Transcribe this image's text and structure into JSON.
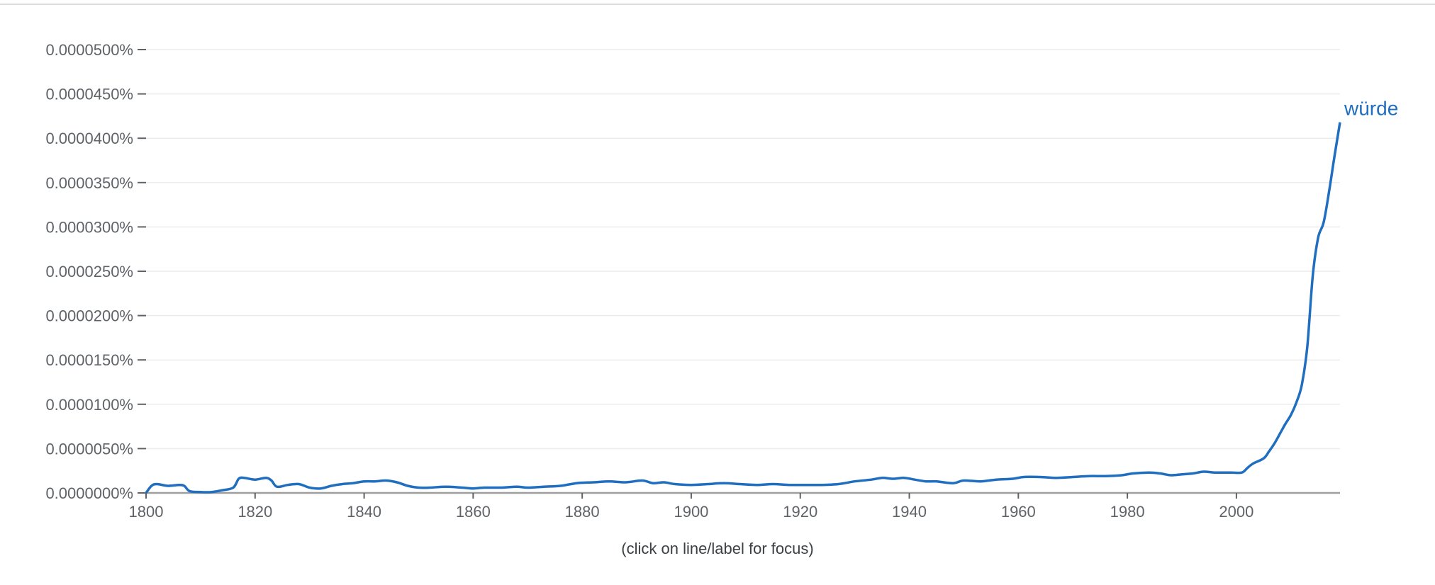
{
  "chart_data": {
    "type": "line",
    "title": "",
    "xlabel": "",
    "ylabel": "",
    "xlim": [
      1800,
      2019
    ],
    "ylim": [
      0,
      5e-05
    ],
    "x_ticks": [
      1800,
      1820,
      1840,
      1860,
      1880,
      1900,
      1920,
      1940,
      1960,
      1980,
      2000
    ],
    "x_tick_labels": [
      "1800",
      "1820",
      "1840",
      "1860",
      "1880",
      "1900",
      "1920",
      "1940",
      "1960",
      "1980",
      "2000"
    ],
    "y_ticks": [
      0,
      5e-06,
      1e-05,
      1.5e-05,
      2e-05,
      2.5e-05,
      3e-05,
      3.5e-05,
      4e-05,
      4.5e-05,
      5e-05
    ],
    "y_tick_labels": [
      "0.0000000%",
      "0.0000050%",
      "0.0000100%",
      "0.0000150%",
      "0.0000200%",
      "0.0000250%",
      "0.0000300%",
      "0.0000350%",
      "0.0000400%",
      "0.0000450%",
      "0.0000500%"
    ],
    "grid": true,
    "legend": "end-of-line label",
    "series": [
      {
        "name": "würde",
        "color": "#1f6ebf",
        "points": [
          [
            1800,
            0.0
          ],
          [
            1801,
            8e-07
          ],
          [
            1802,
            1e-06
          ],
          [
            1804,
            8e-07
          ],
          [
            1806,
            9e-07
          ],
          [
            1807,
            8e-07
          ],
          [
            1808,
            2e-07
          ],
          [
            1810,
            1e-07
          ],
          [
            1812,
            1e-07
          ],
          [
            1814,
            3e-07
          ],
          [
            1816,
            6e-07
          ],
          [
            1817,
            1.6e-06
          ],
          [
            1818,
            1.7e-06
          ],
          [
            1820,
            1.5e-06
          ],
          [
            1822,
            1.7e-06
          ],
          [
            1823,
            1.4e-06
          ],
          [
            1824,
            7e-07
          ],
          [
            1826,
            9e-07
          ],
          [
            1828,
            1e-06
          ],
          [
            1830,
            6e-07
          ],
          [
            1832,
            5e-07
          ],
          [
            1834,
            8e-07
          ],
          [
            1836,
            1e-06
          ],
          [
            1838,
            1.1e-06
          ],
          [
            1840,
            1.3e-06
          ],
          [
            1842,
            1.3e-06
          ],
          [
            1844,
            1.4e-06
          ],
          [
            1846,
            1.2e-06
          ],
          [
            1848,
            8e-07
          ],
          [
            1850,
            6e-07
          ],
          [
            1852,
            6e-07
          ],
          [
            1855,
            7e-07
          ],
          [
            1858,
            6e-07
          ],
          [
            1860,
            5e-07
          ],
          [
            1862,
            6e-07
          ],
          [
            1865,
            6e-07
          ],
          [
            1868,
            7e-07
          ],
          [
            1870,
            6e-07
          ],
          [
            1873,
            7e-07
          ],
          [
            1876,
            8e-07
          ],
          [
            1879,
            1.1e-06
          ],
          [
            1882,
            1.2e-06
          ],
          [
            1885,
            1.3e-06
          ],
          [
            1888,
            1.2e-06
          ],
          [
            1891,
            1.4e-06
          ],
          [
            1893,
            1.1e-06
          ],
          [
            1895,
            1.2e-06
          ],
          [
            1897,
            1e-06
          ],
          [
            1900,
            9e-07
          ],
          [
            1903,
            1e-06
          ],
          [
            1906,
            1.1e-06
          ],
          [
            1909,
            1e-06
          ],
          [
            1912,
            9e-07
          ],
          [
            1915,
            1e-06
          ],
          [
            1918,
            9e-07
          ],
          [
            1921,
            9e-07
          ],
          [
            1924,
            9e-07
          ],
          [
            1927,
            1e-06
          ],
          [
            1930,
            1.3e-06
          ],
          [
            1933,
            1.5e-06
          ],
          [
            1935,
            1.7e-06
          ],
          [
            1937,
            1.6e-06
          ],
          [
            1939,
            1.7e-06
          ],
          [
            1941,
            1.5e-06
          ],
          [
            1943,
            1.3e-06
          ],
          [
            1945,
            1.3e-06
          ],
          [
            1948,
            1.1e-06
          ],
          [
            1950,
            1.4e-06
          ],
          [
            1953,
            1.3e-06
          ],
          [
            1956,
            1.5e-06
          ],
          [
            1959,
            1.6e-06
          ],
          [
            1961,
            1.8e-06
          ],
          [
            1964,
            1.8e-06
          ],
          [
            1967,
            1.7e-06
          ],
          [
            1970,
            1.8e-06
          ],
          [
            1973,
            1.9e-06
          ],
          [
            1976,
            1.9e-06
          ],
          [
            1979,
            2e-06
          ],
          [
            1981,
            2.2e-06
          ],
          [
            1984,
            2.3e-06
          ],
          [
            1986,
            2.2e-06
          ],
          [
            1988,
            2e-06
          ],
          [
            1990,
            2.1e-06
          ],
          [
            1992,
            2.2e-06
          ],
          [
            1994,
            2.4e-06
          ],
          [
            1996,
            2.3e-06
          ],
          [
            1999,
            2.3e-06
          ],
          [
            2001,
            2.3e-06
          ],
          [
            2002,
            2.8e-06
          ],
          [
            2003,
            3.3e-06
          ],
          [
            2005,
            3.9e-06
          ],
          [
            2006,
            4.7e-06
          ],
          [
            2007,
            5.6e-06
          ],
          [
            2008,
            6.7e-06
          ],
          [
            2009,
            7.8e-06
          ],
          [
            2010,
            8.8e-06
          ],
          [
            2011,
            1.02e-05
          ],
          [
            2012,
            1.22e-05
          ],
          [
            2013,
            1.65e-05
          ],
          [
            2014,
            2.45e-05
          ],
          [
            2015,
            2.88e-05
          ],
          [
            2016,
            3.05e-05
          ],
          [
            2017,
            3.4e-05
          ],
          [
            2018,
            3.8e-05
          ],
          [
            2019,
            4.18e-05
          ]
        ]
      }
    ]
  },
  "footer": {
    "hint": "(click on line/label for focus)"
  }
}
